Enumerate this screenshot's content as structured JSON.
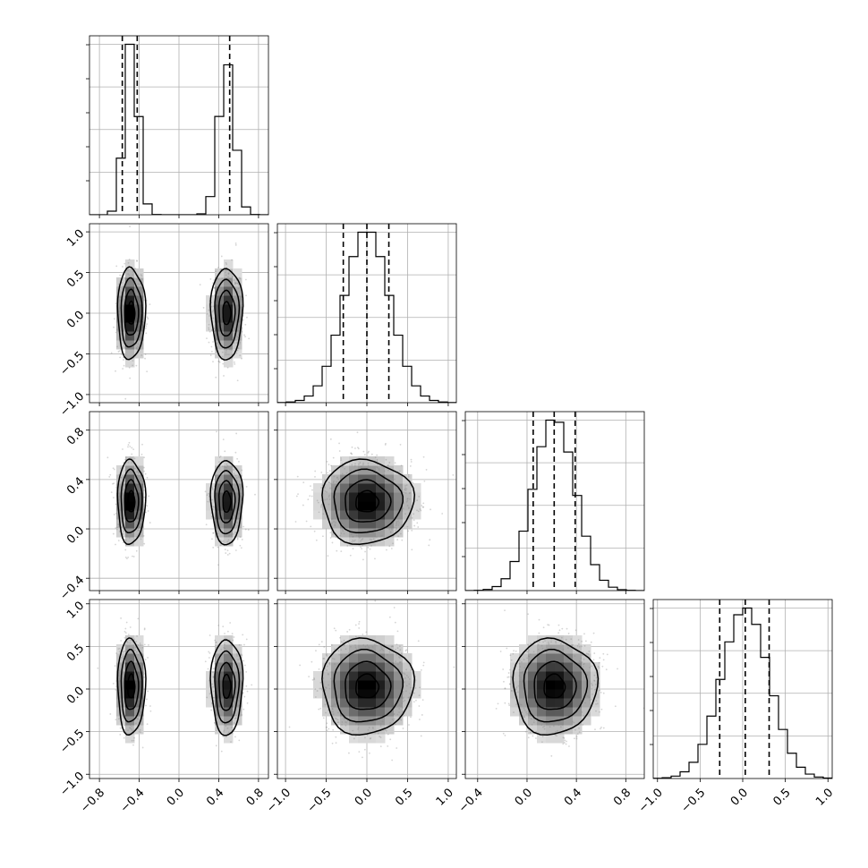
{
  "chart_data": {
    "type": "corner",
    "grid": true,
    "parameters": [
      {
        "range": [
          -0.9,
          0.9
        ],
        "ticks": [
          -0.8,
          -0.4,
          0.0,
          0.4,
          0.8
        ],
        "tick_labels": [
          "−0.8",
          "−0.4",
          "0.0",
          "0.4",
          "0.8"
        ],
        "components": [
          {
            "mean": -0.48,
            "sd": 0.07,
            "weight": 0.5
          },
          {
            "mean": 0.48,
            "sd": 0.08,
            "weight": 0.5
          }
        ],
        "quantiles": [
          -0.57,
          -0.42,
          0.51
        ]
      },
      {
        "range": [
          -1.1,
          1.1
        ],
        "ticks": [
          -1.0,
          -0.5,
          0.0,
          0.5,
          1.0
        ],
        "tick_labels": [
          "−1.0",
          "−0.5",
          "0.0",
          "0.5",
          "1.0"
        ],
        "components": [
          {
            "mean": 0.0,
            "sd": 0.28,
            "weight": 1.0
          }
        ],
        "quantiles": [
          -0.29,
          0.0,
          0.27
        ]
      },
      {
        "range": [
          -0.5,
          0.95
        ],
        "ticks": [
          -0.4,
          0.0,
          0.4,
          0.8
        ],
        "tick_labels": [
          "−0.4",
          "0.0",
          "0.4",
          "0.8"
        ],
        "components": [
          {
            "mean": 0.22,
            "sd": 0.17,
            "weight": 1.0
          }
        ],
        "quantiles": [
          0.05,
          0.22,
          0.39
        ]
      },
      {
        "range": [
          -1.05,
          1.05
        ],
        "ticks": [
          -1.0,
          -0.5,
          0.0,
          0.5,
          1.0
        ],
        "tick_labels": [
          "−1.0",
          "−0.5",
          "0.0",
          "0.5",
          "1.0"
        ],
        "components": [
          {
            "mean": 0.03,
            "sd": 0.28,
            "weight": 1.0
          }
        ],
        "quantiles": [
          -0.27,
          0.03,
          0.31
        ]
      }
    ],
    "histogram_bins": 20,
    "contour_levels_sigma": [
      0.5,
      1.0,
      1.5,
      2.0
    ],
    "colors": {
      "hist": "#000000",
      "scatter": "#888888",
      "density_max": "#000000",
      "grid": "#b0b0b0"
    }
  }
}
